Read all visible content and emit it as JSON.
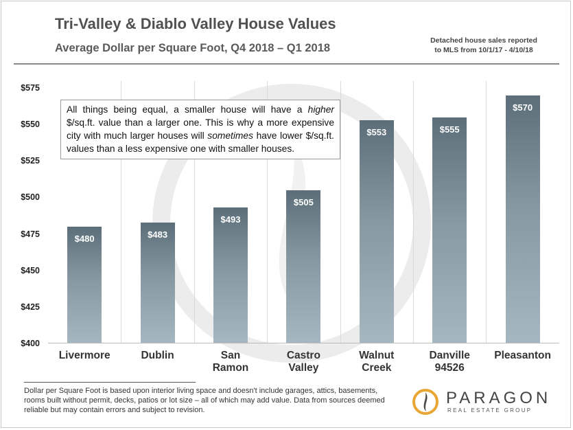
{
  "header": {
    "title": "Tri-Valley & Diablo Valley House Values",
    "subtitle": "Average Dollar  per Square Foot, Q4 2018 – Q1 2018",
    "source_line1": "Detached house sales reported",
    "source_line2": "to MLS from 10/1/17 - 4/10/18"
  },
  "note": {
    "part1": "All things being equal, a smaller house will have a ",
    "em1": "higher",
    "part2": " $/sq.ft. value than a larger one. This is why a more expensive city with much larger houses will ",
    "em2": "sometimes",
    "part3": " have lower $/sq.ft. values than a less expensive one with smaller houses."
  },
  "footnote": "Dollar per Square Foot is based upon interior living space and doesn't include garages, attics, basements, rooms built without permit, decks, patios or lot size – all of which may add value. Data from sources  deemed reliable but may contain errors and subject to revision.",
  "logo": {
    "word": "PARAGON",
    "sub": "REAL ESTATE GROUP",
    "icon": "flame-icon",
    "colors": {
      "ring": "#e8a735",
      "flame": "#4a4a4a"
    }
  },
  "colors": {
    "bar_top": "#5c6e79",
    "bar_bottom": "#a6b7c1",
    "bar_label": "#ffffff",
    "band_line": "#dadada"
  },
  "chart_data": {
    "type": "bar",
    "title": "Tri-Valley & Diablo Valley House Values",
    "subtitle": "Average Dollar  per Square Foot, Q4 2018 – Q1 2018",
    "categories": [
      "Livermore",
      "Dublin",
      "San Ramon",
      "Castro Valley",
      "Walnut Creek",
      "Danville 94526",
      "Pleasanton"
    ],
    "category_lines": [
      [
        "Livermore"
      ],
      [
        "Dublin"
      ],
      [
        "San",
        "Ramon"
      ],
      [
        "Castro",
        "Valley"
      ],
      [
        "Walnut",
        "Creek"
      ],
      [
        "Danville",
        "94526"
      ],
      [
        "Pleasanton"
      ]
    ],
    "values": [
      480,
      483,
      493,
      505,
      553,
      555,
      570
    ],
    "value_labels": [
      "$480",
      "$483",
      "$493",
      "$505",
      "$553",
      "$555",
      "$570"
    ],
    "ylim": [
      400,
      575
    ],
    "yticks": [
      400,
      425,
      450,
      475,
      500,
      525,
      550,
      575
    ],
    "ytick_labels": [
      "$400",
      "$425",
      "$450",
      "$475",
      "$500",
      "$525",
      "$550",
      "$575"
    ],
    "xlabel": "",
    "ylabel": "",
    "grid": false,
    "legend": "none"
  }
}
